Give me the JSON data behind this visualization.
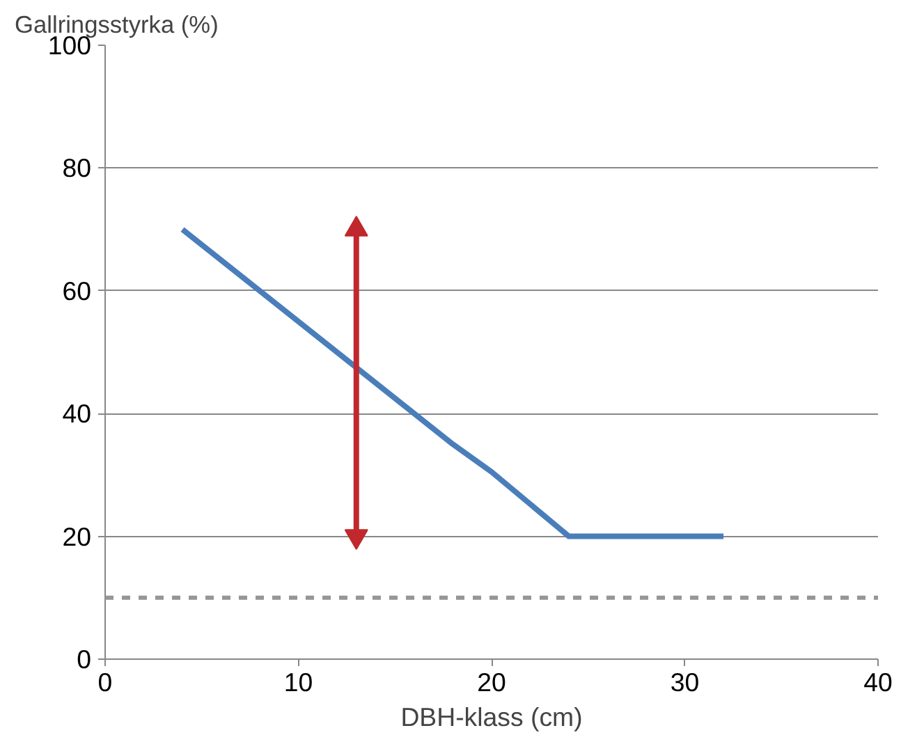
{
  "chart_data": {
    "type": "line",
    "ylabel": "Gallringsstyrka (%)",
    "xlabel": "DBH-klass (cm)",
    "x": [
      4,
      10,
      18,
      20,
      24,
      32
    ],
    "series": [
      {
        "color": "#4a7ebb",
        "values": [
          70,
          55,
          35,
          30.5,
          20,
          20
        ]
      },
      {
        "type": "line",
        "x": [
          13,
          13
        ],
        "color": "#c0282d",
        "values": [
          20,
          70
        ],
        "marker": "triangle"
      }
    ],
    "xlim": [
      0,
      40
    ],
    "xticks": [
      0,
      10,
      20,
      30,
      40
    ],
    "ylim": [
      0,
      100
    ],
    "yticks": [
      0,
      20,
      40,
      60,
      80,
      100
    ],
    "grid": "y",
    "legend": false,
    "marker": "none",
    "line_style": "solid",
    "ref_lines": [
      {
        "axis": "y",
        "value": 10,
        "color": "#969696",
        "line_style": "dashed"
      }
    ]
  }
}
